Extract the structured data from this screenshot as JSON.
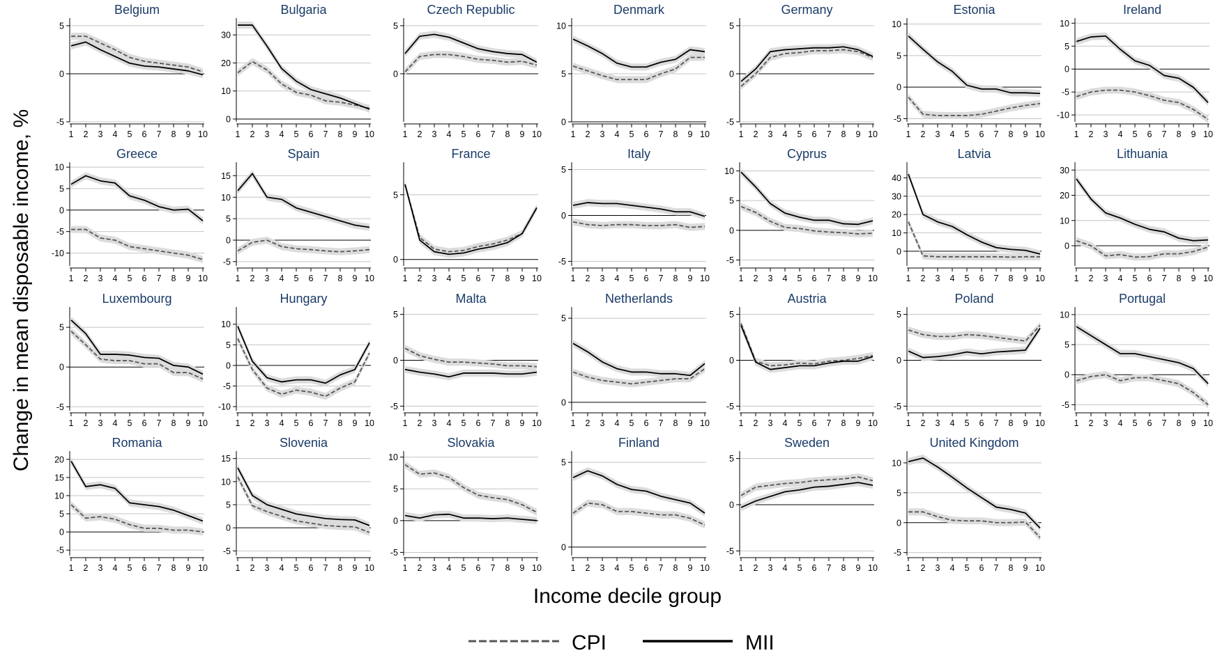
{
  "chart_data": {
    "type": "line",
    "ylabel": "Change in mean disposable income, %",
    "xlabel": "Income decile group",
    "x": [
      1,
      2,
      3,
      4,
      5,
      6,
      7,
      8,
      9,
      10
    ],
    "legend": {
      "position": "bottom",
      "entries": [
        "CPI",
        "MII"
      ]
    },
    "series_styles": {
      "CPI": "dashed",
      "MII": "solid"
    },
    "band_color": "#dcdcdc",
    "panels": [
      {
        "name": "Belgium",
        "yticks": [
          -5,
          0,
          5
        ],
        "ylim": [
          -5,
          5.5
        ],
        "CPI": [
          3.9,
          3.9,
          3.2,
          2.5,
          1.7,
          1.3,
          1.1,
          0.9,
          0.7,
          0.2
        ],
        "MII": [
          2.9,
          3.3,
          2.5,
          1.8,
          1.1,
          0.8,
          0.7,
          0.5,
          0.3,
          -0.1
        ]
      },
      {
        "name": "Bulgaria",
        "yticks": [
          0,
          10,
          20,
          30
        ],
        "ylim": [
          -1,
          35
        ],
        "CPI": [
          16.5,
          20.5,
          17.5,
          12.5,
          9.5,
          8.5,
          6.5,
          6,
          5,
          3.8
        ],
        "MII": [
          33.5,
          33.5,
          26,
          18,
          13.5,
          10.5,
          9,
          7.5,
          5.5,
          3.5
        ]
      },
      {
        "name": "Czech Republic",
        "yticks": [
          0,
          5
        ],
        "ylim": [
          -5,
          5.5
        ],
        "CPI": [
          0.2,
          1.8,
          2,
          2,
          1.8,
          1.5,
          1.4,
          1.2,
          1.3,
          0.9
        ],
        "MII": [
          2.1,
          3.9,
          4.1,
          3.8,
          3.2,
          2.6,
          2.3,
          2.1,
          2,
          1.2
        ]
      },
      {
        "name": "Denmark",
        "yticks": [
          0,
          5,
          10
        ],
        "ylim": [
          0,
          10.5
        ],
        "CPI": [
          5.8,
          5.3,
          4.8,
          4.4,
          4.4,
          4.4,
          5,
          5.5,
          6.7,
          6.7
        ],
        "MII": [
          8.6,
          7.9,
          7.1,
          6.1,
          5.7,
          5.7,
          6.2,
          6.5,
          7.5,
          7.3
        ]
      },
      {
        "name": "Germany",
        "yticks": [
          -5,
          0,
          5
        ],
        "ylim": [
          -5,
          5.5
        ],
        "CPI": [
          -1.3,
          0,
          1.7,
          2.1,
          2.2,
          2.4,
          2.4,
          2.5,
          2.3,
          1.7
        ],
        "MII": [
          -0.8,
          0.5,
          2.3,
          2.5,
          2.6,
          2.7,
          2.7,
          2.8,
          2.5,
          1.8
        ]
      },
      {
        "name": "Estonia",
        "yticks": [
          -5,
          0,
          5,
          10
        ],
        "ylim": [
          -5.5,
          10.5
        ],
        "CPI": [
          -1.6,
          -4.3,
          -4.5,
          -4.5,
          -4.5,
          -4.3,
          -3.8,
          -3.3,
          -2.9,
          -2.6
        ],
        "MII": [
          8.1,
          6,
          4,
          2.5,
          0.3,
          -0.3,
          -0.3,
          -0.9,
          -0.9,
          -1
        ]
      },
      {
        "name": "Ireland",
        "yticks": [
          -10,
          -5,
          0,
          5,
          10
        ],
        "ylim": [
          -11.5,
          10.5
        ],
        "CPI": [
          -6,
          -5,
          -4.6,
          -4.6,
          -5,
          -5.8,
          -6.8,
          -7.3,
          -8.8,
          -11
        ],
        "MII": [
          6,
          7,
          7.2,
          4.3,
          1.8,
          0.8,
          -1.4,
          -2,
          -4,
          -7.3
        ]
      },
      {
        "name": "Greece",
        "yticks": [
          -10,
          -5,
          0,
          5,
          10
        ],
        "ylim": [
          -13,
          10.5
        ],
        "CPI": [
          -4.5,
          -4.5,
          -6.5,
          -7,
          -8.5,
          -9,
          -9.5,
          -10,
          -10.5,
          -11.5
        ],
        "MII": [
          6,
          8,
          6.8,
          6.3,
          3.3,
          2.3,
          0.8,
          0,
          0.2,
          -2.5
        ]
      },
      {
        "name": "Spain",
        "yticks": [
          -5,
          0,
          5,
          10,
          15
        ],
        "ylim": [
          -6,
          17.5
        ],
        "CPI": [
          -2.5,
          -0.5,
          0,
          -1.5,
          -2,
          -2.2,
          -2.5,
          -2.7,
          -2.5,
          -2.2
        ],
        "MII": [
          11.5,
          15.5,
          10,
          9.5,
          7.5,
          6.5,
          5.5,
          4.5,
          3.5,
          3
        ]
      },
      {
        "name": "France",
        "yticks": [
          0,
          5
        ],
        "ylim": [
          -0.5,
          7.3
        ],
        "CPI": [
          5.8,
          1.7,
          0.8,
          0.6,
          0.7,
          1,
          1.2,
          1.5,
          2,
          4
        ],
        "MII": [
          5.8,
          1.5,
          0.6,
          0.4,
          0.5,
          0.8,
          1,
          1.3,
          2,
          4
        ]
      },
      {
        "name": "Italy",
        "yticks": [
          -5,
          0,
          5
        ],
        "ylim": [
          -5.5,
          5.5
        ],
        "CPI": [
          -0.7,
          -1,
          -1.1,
          -1,
          -1,
          -1.1,
          -1.1,
          -1,
          -1.3,
          -1.2
        ],
        "MII": [
          1.1,
          1.4,
          1.3,
          1.3,
          1.1,
          0.9,
          0.7,
          0.4,
          0.4,
          -0.1
        ]
      },
      {
        "name": "Cyprus",
        "yticks": [
          -5,
          0,
          5,
          10
        ],
        "ylim": [
          -6,
          11
        ],
        "CPI": [
          4,
          3,
          1.5,
          0.5,
          0.3,
          -0.1,
          -0.3,
          -0.4,
          -0.6,
          -0.5
        ],
        "MII": [
          9.8,
          7.3,
          4.5,
          2.9,
          2.2,
          1.7,
          1.7,
          1.1,
          1,
          1.6
        ]
      },
      {
        "name": "Latvia",
        "yticks": [
          0,
          10,
          20,
          30,
          40
        ],
        "ylim": [
          -8,
          47
        ],
        "CPI": [
          16,
          -2.5,
          -3,
          -3,
          -3,
          -3,
          -3,
          -3.2,
          -3,
          -3
        ],
        "MII": [
          42,
          20,
          16,
          13.5,
          9,
          5,
          2,
          1,
          0.5,
          -1.5
        ]
      },
      {
        "name": "Lithuania",
        "yticks": [
          0,
          10,
          20,
          30
        ],
        "ylim": [
          -8,
          32
        ],
        "CPI": [
          2,
          0,
          -4,
          -3.5,
          -4.5,
          -4.3,
          -3.2,
          -3.2,
          -2.3,
          -0.5
        ],
        "MII": [
          26.5,
          18.5,
          13,
          11,
          8.5,
          6.5,
          5.5,
          3,
          2,
          2.3
        ]
      },
      {
        "name": "Luxembourg",
        "yticks": [
          -5,
          0,
          5
        ],
        "ylim": [
          -5.5,
          7.2
        ],
        "CPI": [
          4.5,
          2.8,
          1,
          0.8,
          0.8,
          0.4,
          0.4,
          -0.7,
          -0.7,
          -1.5
        ],
        "MII": [
          5.9,
          4.2,
          1.6,
          1.6,
          1.5,
          1.2,
          1.1,
          0.2,
          0,
          -0.9
        ]
      },
      {
        "name": "Hungary",
        "yticks": [
          -10,
          -5,
          0,
          5,
          10
        ],
        "ylim": [
          -11,
          13.5
        ],
        "CPI": [
          6.5,
          -1,
          -5.5,
          -7,
          -6,
          -6.5,
          -7.5,
          -5.5,
          -4,
          3
        ],
        "MII": [
          9.5,
          1,
          -3,
          -4,
          -3.5,
          -3.5,
          -4.3,
          -2.3,
          -1,
          5.5
        ]
      },
      {
        "name": "Malta",
        "yticks": [
          -5,
          0,
          5
        ],
        "ylim": [
          -5.5,
          5.5
        ],
        "CPI": [
          1.3,
          0.5,
          0.1,
          -0.2,
          -0.2,
          -0.3,
          -0.4,
          -0.6,
          -0.6,
          -0.7
        ],
        "MII": [
          -1,
          -1.3,
          -1.5,
          -1.8,
          -1.4,
          -1.4,
          -1.4,
          -1.5,
          -1.5,
          -1.3
        ]
      },
      {
        "name": "Netherlands",
        "yticks": [
          0,
          5
        ],
        "ylim": [
          -0.5,
          5.5
        ],
        "CPI": [
          1.8,
          1.5,
          1.3,
          1.2,
          1.1,
          1.2,
          1.3,
          1.4,
          1.4,
          2
        ],
        "MII": [
          3.5,
          3,
          2.4,
          2,
          1.8,
          1.8,
          1.7,
          1.7,
          1.6,
          2.3
        ]
      },
      {
        "name": "Austria",
        "yticks": [
          -5,
          0,
          5
        ],
        "ylim": [
          -5.5,
          5.5
        ],
        "CPI": [
          4,
          -0.1,
          -0.6,
          -0.5,
          -0.3,
          -0.4,
          -0.1,
          0,
          0.2,
          0.5
        ],
        "MII": [
          3.8,
          -0.2,
          -1,
          -0.8,
          -0.6,
          -0.6,
          -0.3,
          -0.1,
          -0.1,
          0.4
        ]
      },
      {
        "name": "Poland",
        "yticks": [
          -5,
          0,
          5
        ],
        "ylim": [
          -5.5,
          5.5
        ],
        "CPI": [
          3.3,
          2.8,
          2.6,
          2.6,
          2.8,
          2.7,
          2.5,
          2.3,
          2.1,
          3.8
        ],
        "MII": [
          1,
          0.3,
          0.4,
          0.6,
          0.9,
          0.7,
          0.9,
          1,
          1.1,
          3.5
        ]
      },
      {
        "name": "Portugal",
        "yticks": [
          -5,
          0,
          5,
          10
        ],
        "ylim": [
          -6,
          10.8
        ],
        "CPI": [
          -1,
          -0.3,
          0,
          -1,
          -0.5,
          -0.5,
          -1,
          -1.5,
          -3,
          -5
        ],
        "MII": [
          8,
          6.5,
          5,
          3.5,
          3.5,
          3,
          2.5,
          2,
          1,
          -1.5
        ]
      },
      {
        "name": "Romania",
        "yticks": [
          -5,
          0,
          5,
          10,
          15,
          20
        ],
        "ylim": [
          -6.5,
          21.5
        ],
        "CPI": [
          7.5,
          3.8,
          4.2,
          3.5,
          2,
          1,
          1,
          0.5,
          0.5,
          0
        ],
        "MII": [
          19.5,
          12.5,
          13,
          12,
          8,
          7.5,
          7,
          6,
          4.5,
          3
        ]
      },
      {
        "name": "Slovenia",
        "yticks": [
          -5,
          0,
          5,
          10,
          15
        ],
        "ylim": [
          -6,
          16
        ],
        "CPI": [
          11,
          4.8,
          3.5,
          2.5,
          1.5,
          1,
          0.5,
          0.3,
          0.2,
          -1
        ],
        "MII": [
          13,
          7,
          5,
          4,
          3,
          2.5,
          2,
          1.8,
          1.7,
          0.5
        ]
      },
      {
        "name": "Slovakia",
        "yticks": [
          -5,
          0,
          5,
          10
        ],
        "ylim": [
          -5.5,
          10.5
        ],
        "CPI": [
          8.8,
          7.3,
          7.5,
          6.8,
          5.2,
          4,
          3.6,
          3.3,
          2.5,
          1.3
        ],
        "MII": [
          0.8,
          0.4,
          0.9,
          1,
          0.4,
          0.4,
          0.3,
          0.4,
          0.2,
          0
        ]
      },
      {
        "name": "Finland",
        "yticks": [
          0,
          5
        ],
        "ylim": [
          -0.5,
          5.5
        ],
        "CPI": [
          2,
          2.6,
          2.5,
          2.1,
          2.1,
          2,
          1.9,
          1.9,
          1.7,
          1.3
        ],
        "MII": [
          4.1,
          4.5,
          4.2,
          3.7,
          3.4,
          3.3,
          3,
          2.8,
          2.6,
          2
        ]
      },
      {
        "name": "Sweden",
        "yticks": [
          -5,
          0,
          5
        ],
        "ylim": [
          -5.5,
          5.5
        ],
        "CPI": [
          1,
          1.9,
          2.1,
          2.3,
          2.4,
          2.6,
          2.7,
          2.8,
          3,
          2.6
        ],
        "MII": [
          -0.3,
          0.4,
          0.9,
          1.4,
          1.6,
          1.9,
          2,
          2.2,
          2.4,
          2.1
        ]
      },
      {
        "name": "United Kingdom",
        "yticks": [
          -5,
          0,
          5,
          10
        ],
        "ylim": [
          -5.5,
          11.5
        ],
        "CPI": [
          1.8,
          1.8,
          1,
          0.4,
          0.3,
          0.3,
          0,
          0,
          0.1,
          -2.5
        ],
        "MII": [
          10.2,
          10.8,
          9.3,
          7.6,
          5.8,
          4.2,
          2.6,
          2.2,
          1.6,
          -0.9
        ]
      }
    ]
  }
}
